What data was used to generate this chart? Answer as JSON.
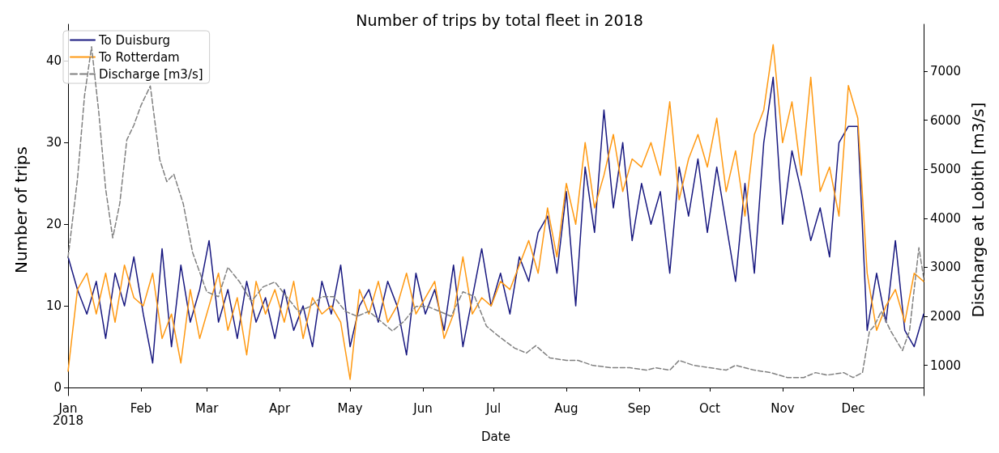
{
  "chart_data": {
    "type": "line",
    "title": "Number of trips by total fleet in 2018",
    "xlabel": "Date",
    "ylabel": "Number of trips",
    "y2label": "Discharge at Lobith [m3/s]",
    "x": [
      "2018-01-01",
      "2018-01-05",
      "2018-01-09",
      "2018-01-13",
      "2018-01-17",
      "2018-01-21",
      "2018-01-25",
      "2018-01-29",
      "2018-02-02",
      "2018-02-06",
      "2018-02-10",
      "2018-02-14",
      "2018-02-18",
      "2018-02-22",
      "2018-02-26",
      "2018-03-02",
      "2018-03-06",
      "2018-03-10",
      "2018-03-14",
      "2018-03-18",
      "2018-03-22",
      "2018-03-26",
      "2018-03-30",
      "2018-04-03",
      "2018-04-07",
      "2018-04-11",
      "2018-04-15",
      "2018-04-19",
      "2018-04-23",
      "2018-04-27",
      "2018-05-01",
      "2018-05-05",
      "2018-05-09",
      "2018-05-13",
      "2018-05-17",
      "2018-05-21",
      "2018-05-25",
      "2018-05-29",
      "2018-06-02",
      "2018-06-06",
      "2018-06-10",
      "2018-06-14",
      "2018-06-18",
      "2018-06-22",
      "2018-06-26",
      "2018-06-30",
      "2018-07-04",
      "2018-07-08",
      "2018-07-12",
      "2018-07-16",
      "2018-07-20",
      "2018-07-24",
      "2018-07-28",
      "2018-08-01",
      "2018-08-05",
      "2018-08-09",
      "2018-08-13",
      "2018-08-17",
      "2018-08-21",
      "2018-08-25",
      "2018-08-29",
      "2018-09-02",
      "2018-09-06",
      "2018-09-10",
      "2018-09-14",
      "2018-09-18",
      "2018-09-22",
      "2018-09-26",
      "2018-09-30",
      "2018-10-04",
      "2018-10-08",
      "2018-10-12",
      "2018-10-16",
      "2018-10-20",
      "2018-10-24",
      "2018-10-28",
      "2018-11-01",
      "2018-11-05",
      "2018-11-09",
      "2018-11-13",
      "2018-11-17",
      "2018-11-21",
      "2018-11-25",
      "2018-11-29",
      "2018-12-03",
      "2018-12-07",
      "2018-12-11",
      "2018-12-15",
      "2018-12-19",
      "2018-12-23",
      "2018-12-27",
      "2018-12-31"
    ],
    "series": [
      {
        "name": "To Duisburg",
        "color": "#191980",
        "values": [
          16,
          12,
          9,
          13,
          6,
          14,
          10,
          16,
          9,
          3,
          17,
          5,
          15,
          8,
          12,
          18,
          8,
          12,
          6,
          13,
          8,
          11,
          6,
          12,
          7,
          10,
          5,
          13,
          9,
          15,
          5,
          10,
          12,
          8,
          13,
          10,
          4,
          14,
          9,
          12,
          7,
          15,
          5,
          11,
          17,
          10,
          14,
          9,
          16,
          13,
          19,
          21,
          14,
          24,
          10,
          27,
          19,
          34,
          22,
          30,
          18,
          25,
          20,
          24,
          14,
          27,
          21,
          28,
          19,
          27,
          20,
          13,
          25,
          14,
          30,
          38,
          20,
          29,
          24,
          18,
          22,
          16,
          30,
          32,
          32,
          7,
          14,
          8,
          18,
          7,
          5,
          9
        ]
      },
      {
        "name": "To Rotterdam",
        "color": "#ff9912",
        "values": [
          2,
          12,
          14,
          9,
          14,
          8,
          15,
          11,
          10,
          14,
          6,
          9,
          3,
          12,
          6,
          10,
          14,
          7,
          11,
          4,
          13,
          9,
          12,
          8,
          13,
          6,
          11,
          9,
          10,
          8,
          1,
          12,
          9,
          13,
          8,
          10,
          14,
          9,
          11,
          13,
          6,
          9,
          16,
          9,
          11,
          10,
          13,
          12,
          15,
          18,
          14,
          22,
          16,
          25,
          20,
          30,
          22,
          26,
          31,
          24,
          28,
          27,
          30,
          26,
          35,
          23,
          28,
          31,
          27,
          33,
          24,
          29,
          21,
          31,
          34,
          42,
          30,
          35,
          26,
          38,
          24,
          27,
          21,
          37,
          33,
          14,
          7,
          10,
          12,
          8,
          14,
          13
        ]
      },
      {
        "name": "Discharge [m3/s]",
        "color": "#808080",
        "axis": "y2",
        "line_style": "dashed",
        "x": [
          "2018-01-01",
          "2018-01-05",
          "2018-01-08",
          "2018-01-11",
          "2018-01-14",
          "2018-01-17",
          "2018-01-20",
          "2018-01-23",
          "2018-01-26",
          "2018-01-29",
          "2018-02-01",
          "2018-02-05",
          "2018-02-09",
          "2018-02-12",
          "2018-02-15",
          "2018-02-19",
          "2018-02-23",
          "2018-03-01",
          "2018-03-06",
          "2018-03-10",
          "2018-03-15",
          "2018-03-20",
          "2018-03-25",
          "2018-03-30",
          "2018-04-04",
          "2018-04-09",
          "2018-04-14",
          "2018-04-19",
          "2018-04-24",
          "2018-04-29",
          "2018-05-04",
          "2018-05-09",
          "2018-05-14",
          "2018-05-19",
          "2018-05-24",
          "2018-05-29",
          "2018-06-03",
          "2018-06-08",
          "2018-06-13",
          "2018-06-18",
          "2018-06-23",
          "2018-06-28",
          "2018-07-03",
          "2018-07-10",
          "2018-07-15",
          "2018-07-19",
          "2018-07-25",
          "2018-08-01",
          "2018-08-06",
          "2018-08-12",
          "2018-08-20",
          "2018-08-28",
          "2018-09-04",
          "2018-09-08",
          "2018-09-14",
          "2018-09-18",
          "2018-09-24",
          "2018-10-01",
          "2018-10-08",
          "2018-10-12",
          "2018-10-20",
          "2018-10-27",
          "2018-11-03",
          "2018-11-10",
          "2018-11-15",
          "2018-11-20",
          "2018-11-27",
          "2018-12-01",
          "2018-12-05",
          "2018-12-08",
          "2018-12-10",
          "2018-12-13",
          "2018-12-17",
          "2018-12-22",
          "2018-12-25",
          "2018-12-29",
          "2018-12-31"
        ],
        "values": [
          3200,
          4800,
          6500,
          7500,
          6200,
          4600,
          3600,
          4300,
          5600,
          5900,
          6300,
          6700,
          5200,
          4750,
          4900,
          4300,
          3300,
          2500,
          2400,
          3000,
          2700,
          2300,
          2600,
          2700,
          2400,
          2100,
          2200,
          2400,
          2400,
          2100,
          2000,
          2100,
          1900,
          1700,
          1900,
          2200,
          2200,
          2100,
          2000,
          2500,
          2400,
          1800,
          1600,
          1350,
          1250,
          1400,
          1150,
          1100,
          1100,
          1000,
          950,
          950,
          900,
          950,
          900,
          1100,
          1000,
          950,
          900,
          1000,
          900,
          850,
          750,
          750,
          850,
          800,
          850,
          750,
          850,
          1700,
          1800,
          2100,
          1700,
          1300,
          1700,
          3400,
          2800
        ]
      }
    ],
    "xlim": [
      "2018-01-01",
      "2018-12-31"
    ],
    "xticks": [
      {
        "value": "2018-01-01",
        "label": "Jan\n2018"
      },
      {
        "value": "2018-02-01",
        "label": "Feb"
      },
      {
        "value": "2018-03-01",
        "label": "Mar"
      },
      {
        "value": "2018-04-01",
        "label": "Apr"
      },
      {
        "value": "2018-05-01",
        "label": "May"
      },
      {
        "value": "2018-06-01",
        "label": "Jun"
      },
      {
        "value": "2018-07-01",
        "label": "Jul"
      },
      {
        "value": "2018-08-01",
        "label": "Aug"
      },
      {
        "value": "2018-09-01",
        "label": "Sep"
      },
      {
        "value": "2018-10-01",
        "label": "Oct"
      },
      {
        "value": "2018-11-01",
        "label": "Nov"
      },
      {
        "value": "2018-12-01",
        "label": "Dec"
      }
    ],
    "ylim": [
      -1,
      44.5
    ],
    "yticks": [
      0,
      10,
      20,
      30,
      40
    ],
    "y2lim": [
      380,
      7960
    ],
    "y2ticks": [
      1000,
      2000,
      3000,
      4000,
      5000,
      6000,
      7000
    ],
    "legend": "top left",
    "grid": false
  }
}
